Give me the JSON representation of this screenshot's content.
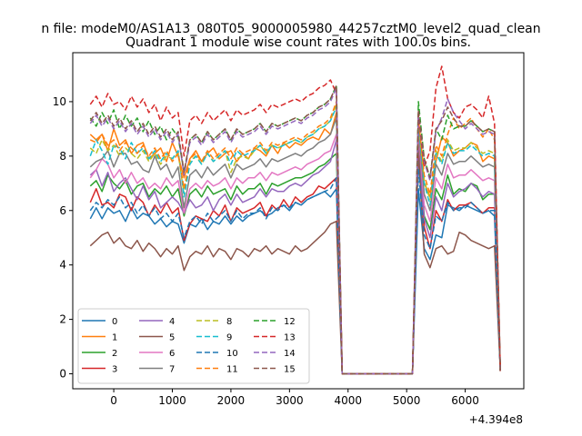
{
  "figure": {
    "suptitle": "n file: modeM0/AS1A13_080T05_9000005980_44257cztM0_level2_quad_clean",
    "offset_label": "+4.394e8"
  },
  "chart_data": {
    "type": "line",
    "title": "Quadrant 1 module wise count rates with 100.0s bins.",
    "xlabel": "",
    "ylabel": "",
    "xlim": [
      -700,
      7000
    ],
    "ylim": [
      -0.55,
      11.8
    ],
    "x_offset": 439400000,
    "xticks": [
      0,
      1000,
      2000,
      3000,
      4000,
      5000,
      6000
    ],
    "xtick_labels": [
      "0",
      "1000",
      "2000",
      "3000",
      "4000",
      "5000",
      "6000"
    ],
    "yticks": [
      0,
      2,
      4,
      6,
      8,
      10
    ],
    "ytick_labels": [
      "0",
      "2",
      "4",
      "6",
      "8",
      "10"
    ],
    "grid": false,
    "legend": {
      "placement": "lower-left",
      "columns": 4
    },
    "segments": [
      {
        "x_start": -400,
        "x_end": 3800,
        "step": 100
      },
      {
        "x_start": 3900,
        "x_end": 5100,
        "step": 100,
        "zero": true
      },
      {
        "x_start": 5200,
        "x_end": 6600,
        "step": 100
      }
    ],
    "series": [
      {
        "name": "0",
        "color": "#1f77b4",
        "dash": "",
        "seg1": [
          5.7,
          6.1,
          5.7,
          6.1,
          5.9,
          6.0,
          5.6,
          6.1,
          5.7,
          5.9,
          5.8,
          5.5,
          5.7,
          5.4,
          5.6,
          5.5,
          4.8,
          5.5,
          5.4,
          5.7,
          5.3,
          5.6,
          5.5,
          5.8,
          5.5,
          5.8,
          5.6,
          5.8,
          5.9,
          6.0,
          5.8,
          5.9,
          6.1,
          6.2,
          6.0,
          6.3,
          6.2,
          6.4,
          6.5,
          6.6,
          6.7,
          6.5,
          6.8
        ],
        "seg3": [
          6.8,
          4.6,
          4.2,
          5.1,
          5.0,
          6.2,
          6.1,
          6.0,
          6.2,
          6.1,
          6.0,
          5.9,
          6.0,
          5.8,
          0.1
        ]
      },
      {
        "name": "1",
        "color": "#ff7f0e",
        "dash": "",
        "seg1": [
          8.8,
          8.6,
          8.8,
          8.2,
          9.0,
          8.4,
          8.6,
          8.1,
          8.4,
          8.5,
          7.9,
          8.1,
          8.3,
          7.8,
          8.5,
          8.0,
          7.2,
          7.9,
          8.2,
          7.8,
          8.1,
          8.3,
          7.9,
          8.1,
          8.2,
          7.8,
          8.1,
          7.9,
          8.3,
          8.2,
          8.0,
          8.4,
          8.1,
          8.5,
          8.3,
          8.5,
          8.4,
          8.6,
          8.7,
          8.6,
          9.0,
          8.8,
          9.6
        ],
        "seg3": [
          9.0,
          7.0,
          6.5,
          7.8,
          8.7,
          8.5,
          8.0,
          8.2,
          8.3,
          8.5,
          8.4,
          7.8,
          8.0,
          7.9,
          0.1
        ]
      },
      {
        "name": "2",
        "color": "#2ca02c",
        "dash": "",
        "seg1": [
          6.9,
          7.1,
          6.7,
          7.3,
          7.0,
          6.8,
          7.1,
          6.6,
          6.9,
          7.0,
          6.5,
          6.8,
          6.6,
          6.9,
          6.5,
          6.8,
          5.8,
          6.6,
          6.8,
          6.5,
          6.9,
          6.6,
          6.7,
          6.8,
          6.4,
          6.9,
          6.6,
          6.8,
          6.8,
          7.0,
          6.6,
          7.0,
          6.9,
          7.0,
          7.1,
          7.2,
          7.2,
          7.3,
          7.4,
          7.6,
          7.7,
          7.9,
          8.1
        ],
        "seg3": [
          8.6,
          5.8,
          5.3,
          6.8,
          6.4,
          7.3,
          6.6,
          6.8,
          6.7,
          7.0,
          6.9,
          6.4,
          6.6,
          6.6,
          0.1
        ]
      },
      {
        "name": "3",
        "color": "#d62728",
        "dash": "",
        "seg1": [
          6.3,
          6.8,
          6.2,
          6.3,
          6.1,
          6.6,
          6.5,
          6.0,
          6.5,
          6.3,
          5.8,
          6.2,
          5.9,
          6.3,
          5.9,
          6.1,
          4.9,
          5.5,
          5.8,
          5.7,
          5.6,
          6.0,
          5.8,
          6.2,
          5.6,
          6.1,
          5.9,
          6.0,
          6.1,
          6.3,
          5.8,
          6.2,
          6.0,
          6.4,
          6.1,
          6.5,
          6.3,
          6.5,
          6.6,
          6.9,
          6.8,
          7.0,
          7.2
        ],
        "seg3": [
          8.8,
          5.4,
          4.6,
          6.0,
          5.6,
          6.4,
          6.0,
          6.2,
          6.2,
          6.3,
          6.1,
          5.9,
          6.1,
          6.1,
          0.1
        ]
      },
      {
        "name": "4",
        "color": "#9467bd",
        "dash": "",
        "seg1": [
          7.3,
          7.5,
          6.9,
          7.4,
          6.7,
          7.0,
          7.2,
          6.8,
          6.4,
          6.9,
          6.4,
          6.7,
          6.1,
          6.3,
          6.5,
          6.3,
          5.9,
          6.4,
          6.1,
          6.2,
          6.5,
          6.0,
          6.4,
          6.6,
          6.2,
          6.6,
          6.3,
          6.4,
          6.5,
          6.8,
          6.5,
          6.8,
          6.7,
          6.7,
          6.9,
          7.0,
          6.9,
          7.1,
          7.3,
          7.4,
          7.6,
          7.8,
          8.6
        ],
        "seg3": [
          8.3,
          5.7,
          5.0,
          6.5,
          6.0,
          7.0,
          6.5,
          6.7,
          6.8,
          7.0,
          6.8,
          6.5,
          6.7,
          6.6,
          0.1
        ]
      },
      {
        "name": "5",
        "color": "#8c564b",
        "dash": "",
        "seg1": [
          4.7,
          4.9,
          5.1,
          5.2,
          4.8,
          5.0,
          4.7,
          4.6,
          4.9,
          4.5,
          4.8,
          4.6,
          4.3,
          4.6,
          4.4,
          4.7,
          3.8,
          4.3,
          4.5,
          4.4,
          4.7,
          4.3,
          4.6,
          4.5,
          4.2,
          4.6,
          4.5,
          4.3,
          4.6,
          4.5,
          4.7,
          4.4,
          4.6,
          4.5,
          4.4,
          4.7,
          4.5,
          4.6,
          4.8,
          5.0,
          5.2,
          5.5,
          5.6
        ],
        "seg3": [
          8.2,
          4.4,
          3.9,
          4.6,
          4.7,
          4.4,
          4.5,
          5.2,
          5.1,
          4.9,
          4.8,
          4.7,
          4.6,
          4.7,
          0.1
        ]
      },
      {
        "name": "6",
        "color": "#e377c2",
        "dash": "",
        "seg1": [
          7.2,
          7.5,
          7.9,
          7.7,
          7.2,
          7.5,
          7.0,
          7.4,
          7.0,
          7.2,
          6.8,
          7.0,
          6.8,
          7.2,
          6.9,
          7.1,
          5.9,
          6.8,
          7.0,
          6.8,
          7.1,
          6.9,
          7.0,
          7.2,
          6.8,
          7.2,
          7.0,
          7.2,
          7.2,
          7.4,
          7.1,
          7.4,
          7.3,
          7.4,
          7.5,
          7.6,
          7.5,
          7.7,
          7.8,
          7.9,
          8.1,
          8.2,
          8.8
        ],
        "seg3": [
          9.0,
          6.2,
          5.6,
          7.2,
          6.8,
          7.7,
          7.2,
          7.3,
          7.3,
          7.5,
          7.3,
          7.1,
          7.2,
          7.1,
          0.1
        ]
      },
      {
        "name": "7",
        "color": "#7f7f7f",
        "dash": "",
        "seg1": [
          7.6,
          7.8,
          7.9,
          8.2,
          7.6,
          8.1,
          8.1,
          7.7,
          7.8,
          7.5,
          7.4,
          8.0,
          7.5,
          7.7,
          7.2,
          7.6,
          6.1,
          7.3,
          7.5,
          7.2,
          7.6,
          7.3,
          7.5,
          7.7,
          7.2,
          7.7,
          7.5,
          7.6,
          7.7,
          7.9,
          7.6,
          7.9,
          7.8,
          7.9,
          8.0,
          8.1,
          8.0,
          8.2,
          8.3,
          8.5,
          8.6,
          8.8,
          9.4
        ],
        "seg3": [
          9.1,
          6.6,
          6.0,
          7.7,
          7.3,
          8.1,
          7.7,
          7.8,
          7.8,
          8.0,
          7.8,
          7.6,
          7.7,
          7.6,
          0.1
        ]
      },
      {
        "name": "8",
        "color": "#bcbd22",
        "dash": "6,3",
        "seg1": [
          8.3,
          8.1,
          8.6,
          8.2,
          8.4,
          8.0,
          8.3,
          8.1,
          7.9,
          8.2,
          7.8,
          8.1,
          7.7,
          8.0,
          7.9,
          8.1,
          6.6,
          7.8,
          8.0,
          7.7,
          8.1,
          7.8,
          8.0,
          8.2,
          7.4,
          7.9,
          8.0,
          7.9,
          8.2,
          8.4,
          8.1,
          8.4,
          8.3,
          8.4,
          8.5,
          8.6,
          8.5,
          8.7,
          8.8,
          9.0,
          9.1,
          9.3,
          9.9
        ],
        "seg3": [
          9.3,
          7.1,
          6.4,
          8.2,
          7.8,
          8.6,
          8.2,
          8.3,
          8.3,
          8.5,
          8.3,
          8.1,
          8.2,
          8.1,
          0.1
        ]
      },
      {
        "name": "9",
        "color": "#17becf",
        "dash": "6,3",
        "seg1": [
          8.0,
          8.6,
          8.2,
          7.7,
          8.4,
          8.3,
          7.9,
          8.5,
          8.1,
          8.3,
          7.9,
          8.2,
          7.8,
          8.1,
          7.9,
          8.2,
          6.5,
          7.7,
          8.0,
          7.7,
          8.1,
          7.8,
          8.0,
          8.2,
          7.7,
          8.2,
          8.0,
          8.1,
          8.2,
          8.4,
          8.1,
          8.4,
          8.3,
          8.4,
          8.5,
          8.6,
          8.5,
          8.7,
          8.8,
          9.0,
          9.1,
          9.3,
          9.8
        ],
        "seg3": [
          9.2,
          7.0,
          6.2,
          8.1,
          7.7,
          8.5,
          8.1,
          8.2,
          8.2,
          8.4,
          8.2,
          8.0,
          8.1,
          8.0,
          0.1
        ]
      },
      {
        "name": "10",
        "color": "#1f77b4",
        "dash": "6,3",
        "seg1": [
          6.0,
          6.3,
          6.1,
          6.4,
          6.2,
          6.5,
          6.1,
          6.3,
          5.9,
          6.2,
          5.8,
          6.1,
          5.7,
          5.9,
          5.6,
          5.9,
          5.0,
          5.6,
          5.8,
          5.5,
          5.9,
          5.6,
          5.8,
          6.0,
          5.6,
          6.0,
          5.7,
          5.9,
          5.9,
          6.1,
          5.7,
          6.1,
          6.0,
          6.2,
          6.1,
          6.3,
          6.2,
          6.4,
          6.5,
          6.6,
          6.7,
          6.8,
          7.2
        ],
        "seg3": [
          7.5,
          5.1,
          4.6,
          5.8,
          5.6,
          6.3,
          6.0,
          6.1,
          6.1,
          6.3,
          6.1,
          5.9,
          6.0,
          6.0,
          0.1
        ]
      },
      {
        "name": "11",
        "color": "#ff7f0e",
        "dash": "6,3",
        "seg1": [
          8.6,
          8.5,
          8.8,
          8.4,
          8.6,
          8.2,
          8.5,
          8.3,
          8.1,
          8.4,
          8.0,
          8.3,
          7.9,
          8.2,
          7.8,
          8.1,
          6.8,
          7.9,
          8.1,
          7.8,
          8.2,
          7.9,
          8.1,
          8.3,
          7.9,
          8.3,
          8.1,
          8.2,
          8.3,
          8.5,
          8.2,
          8.5,
          8.4,
          8.5,
          8.6,
          8.7,
          8.6,
          8.8,
          8.9,
          9.1,
          9.2,
          9.4,
          10.0
        ],
        "seg3": [
          9.4,
          7.3,
          6.6,
          8.4,
          8.0,
          8.8,
          9.4,
          9.0,
          9.2,
          9.4,
          9.0,
          8.7,
          9.0,
          8.6,
          0.1
        ]
      },
      {
        "name": "12",
        "color": "#2ca02c",
        "dash": "6,3",
        "seg1": [
          9.4,
          9.1,
          9.6,
          9.2,
          9.7,
          9.0,
          9.5,
          9.1,
          9.4,
          8.9,
          9.3,
          8.8,
          9.1,
          8.6,
          9.0,
          8.7,
          7.4,
          8.6,
          8.8,
          8.5,
          8.9,
          8.6,
          8.8,
          9.0,
          8.6,
          9.0,
          8.8,
          8.9,
          9.0,
          9.2,
          8.9,
          9.2,
          9.1,
          9.2,
          9.3,
          9.4,
          9.3,
          9.5,
          9.6,
          9.8,
          9.9,
          10.1,
          10.6
        ],
        "seg3": [
          10.0,
          7.9,
          7.2,
          9.0,
          8.6,
          9.5,
          9.0,
          9.1,
          9.1,
          9.3,
          9.1,
          8.9,
          9.0,
          8.9,
          0.1
        ]
      },
      {
        "name": "13",
        "color": "#d62728",
        "dash": "6,3",
        "seg1": [
          9.9,
          10.2,
          9.8,
          10.3,
          9.9,
          10.0,
          9.7,
          10.2,
          9.8,
          10.1,
          9.6,
          9.9,
          9.3,
          9.8,
          9.4,
          9.6,
          8.0,
          9.3,
          9.5,
          9.2,
          9.6,
          9.3,
          9.5,
          9.7,
          9.3,
          9.7,
          9.5,
          9.6,
          9.7,
          9.9,
          9.6,
          9.9,
          9.8,
          9.9,
          10.0,
          10.1,
          10.0,
          10.2,
          10.3,
          10.5,
          10.6,
          10.8,
          10.3
        ],
        "seg3": [
          9.5,
          7.6,
          8.2,
          10.5,
          11.3,
          10.1,
          9.6,
          9.4,
          9.8,
          9.9,
          9.7,
          9.4,
          10.2,
          9.2,
          0.1
        ]
      },
      {
        "name": "14",
        "color": "#9467bd",
        "dash": "6,3",
        "seg1": [
          9.2,
          9.5,
          9.1,
          9.4,
          9.0,
          9.3,
          8.9,
          9.2,
          8.8,
          9.1,
          8.7,
          9.0,
          8.6,
          8.9,
          8.5,
          8.8,
          7.3,
          8.5,
          8.7,
          8.4,
          8.8,
          8.5,
          8.7,
          8.9,
          8.5,
          8.9,
          8.7,
          8.8,
          8.9,
          9.1,
          8.8,
          9.1,
          9.0,
          9.1,
          9.2,
          9.3,
          9.2,
          9.4,
          9.5,
          9.7,
          9.8,
          10.0,
          10.5
        ],
        "seg3": [
          9.6,
          7.8,
          7.1,
          8.9,
          9.4,
          10.1,
          9.6,
          9.3,
          9.0,
          9.2,
          9.0,
          8.8,
          8.9,
          8.8,
          0.1
        ]
      },
      {
        "name": "15",
        "color": "#8c564b",
        "dash": "6,3",
        "seg1": [
          9.3,
          9.6,
          9.2,
          9.5,
          9.1,
          9.4,
          9.0,
          9.3,
          8.9,
          9.2,
          8.8,
          9.1,
          8.7,
          9.0,
          8.6,
          8.9,
          7.4,
          8.6,
          8.8,
          8.5,
          8.9,
          8.6,
          8.8,
          9.0,
          8.6,
          9.0,
          8.8,
          8.9,
          9.0,
          9.2,
          8.9,
          9.2,
          9.1,
          9.2,
          9.3,
          9.4,
          9.3,
          9.5,
          9.6,
          9.8,
          9.9,
          10.1,
          10.6
        ],
        "seg3": [
          9.7,
          7.9,
          7.2,
          9.0,
          9.3,
          9.8,
          9.4,
          9.1,
          9.1,
          9.3,
          9.1,
          8.9,
          9.0,
          8.9,
          0.1
        ]
      }
    ]
  }
}
